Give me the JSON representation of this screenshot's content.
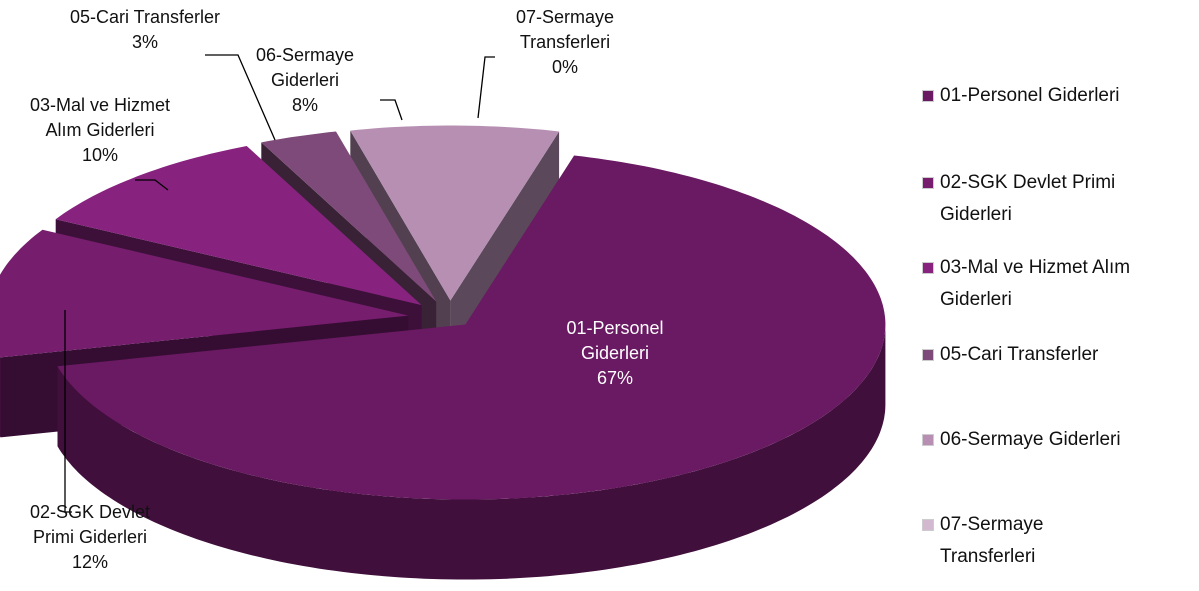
{
  "chart_data": {
    "type": "pie",
    "categories": [
      "01-Personel Giderleri",
      "02-SGK Devlet Primi Giderleri",
      "03-Mal ve Hizmet Alım Giderleri",
      "05-Cari Transferler",
      "06-Sermaye Giderleri",
      "07-Sermaye Transferleri"
    ],
    "values": [
      67,
      12,
      10,
      3,
      8,
      0
    ],
    "value_labels": [
      "67%",
      "12%",
      "10%",
      "3%",
      "8%",
      "0%"
    ],
    "colors": [
      "#6a1963",
      "#761d6e",
      "#87237f",
      "#7e4a79",
      "#b68fb3",
      "#d2b9cf"
    ],
    "legend": "right"
  }
}
